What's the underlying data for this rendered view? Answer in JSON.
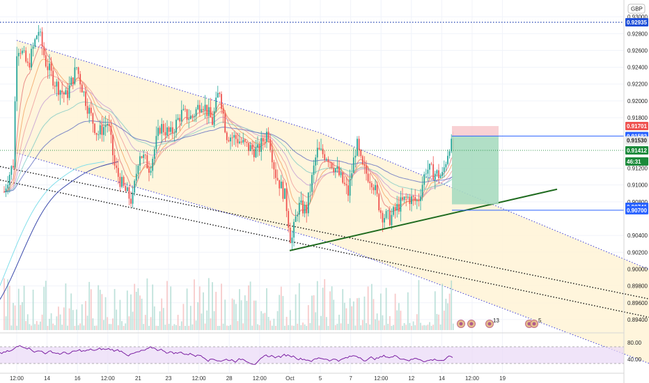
{
  "currency_badge": "GBP",
  "colors": {
    "up": "#26a69a",
    "down": "#ef5350",
    "channel_fill": "#fff3d6",
    "channel_line": "#3d3dd6",
    "trend_line": "#1f6b1f",
    "rsi_line": "#7b1fa2",
    "rsi_band": "#ead8f7",
    "stop_zone": "#f8c9cc",
    "target_zone": "#a8dcc0"
  },
  "y_axis": {
    "min": 0.893,
    "max": 0.9315,
    "ticks": [
      "0.93000",
      "0.92800",
      "0.92600",
      "0.92400",
      "0.92200",
      "0.92000",
      "0.91800",
      "0.91200",
      "0.91000",
      "0.90800",
      "0.90400",
      "0.90200",
      "0.90000",
      "0.89800",
      "0.89600",
      "0.89400"
    ]
  },
  "price_tags": [
    {
      "label": "0.92935",
      "value": 0.92935,
      "color": "#1e4fd8",
      "light": false
    },
    {
      "label": "0.91701",
      "value": 0.91701,
      "color": "#ef5350",
      "light": false
    },
    {
      "label": "0.91582",
      "value": 0.91582,
      "color": "#2962ff",
      "light": false
    },
    {
      "label": "0.91530",
      "value": 0.9153,
      "color": "#e8e8e8",
      "light": true
    },
    {
      "label": "0.91412",
      "value": 0.91412,
      "color": "#1b8a3a",
      "light": false
    },
    {
      "label": "46:31",
      "value": 0.9128,
      "color": "#1b8a3a",
      "light": false
    },
    {
      "label": "0.90741",
      "value": 0.90741,
      "color": "#2962ff",
      "light": false
    },
    {
      "label": "0.90700",
      "value": 0.907,
      "color": "#2962ff",
      "light": false
    }
  ],
  "x_axis": {
    "labels": [
      "12:00",
      "14",
      "16",
      "12:00",
      "21",
      "23",
      "12:00",
      "28",
      "12:00",
      "Oct",
      "5",
      "7",
      "12:00",
      "12",
      "14",
      "12:00",
      "19"
    ]
  },
  "rsi": {
    "ticks": [
      "80.00",
      "40.00"
    ],
    "min": 20,
    "max": 100,
    "upper": 70,
    "lower": 30
  },
  "events": {
    "group1_count": "13",
    "group2_count": "5"
  },
  "chart_data": {
    "type": "candlestick",
    "symbol_currency": "GBP",
    "ylim": [
      0.893,
      0.9315
    ],
    "x_tick_labels": [
      "12:00",
      "14",
      "16",
      "12:00",
      "21",
      "23",
      "12:00",
      "28",
      "12:00",
      "Oct",
      "5",
      "7",
      "12:00",
      "12",
      "14",
      "12:00",
      "19"
    ],
    "channel": {
      "upper": [
        [
          0,
          0.9272
        ],
        [
          10,
          0.9162
        ],
        [
          22,
          0.8982
        ]
      ],
      "lower": [
        [
          0,
          0.9138
        ],
        [
          10,
          0.9035
        ],
        [
          22,
          0.8872
        ]
      ]
    },
    "parallel_lines": [
      {
        "points": [
          [
            0,
            0.9122
          ],
          [
            22,
            0.896
          ]
        ]
      },
      {
        "points": [
          [
            0,
            0.9106
          ],
          [
            22,
            0.8938
          ]
        ]
      }
    ],
    "trend_line": {
      "points": [
        [
          9.3,
          0.9022
        ],
        [
          18.2,
          0.9095
        ]
      ]
    },
    "resistance_level": 0.92935,
    "position": {
      "entry": 0.91582,
      "stop": 0.91701,
      "target": 0.90741,
      "last_price": 0.91412
    },
    "indicators": [
      "EMA ribbon",
      "volume",
      "RSI(14)"
    ]
  }
}
